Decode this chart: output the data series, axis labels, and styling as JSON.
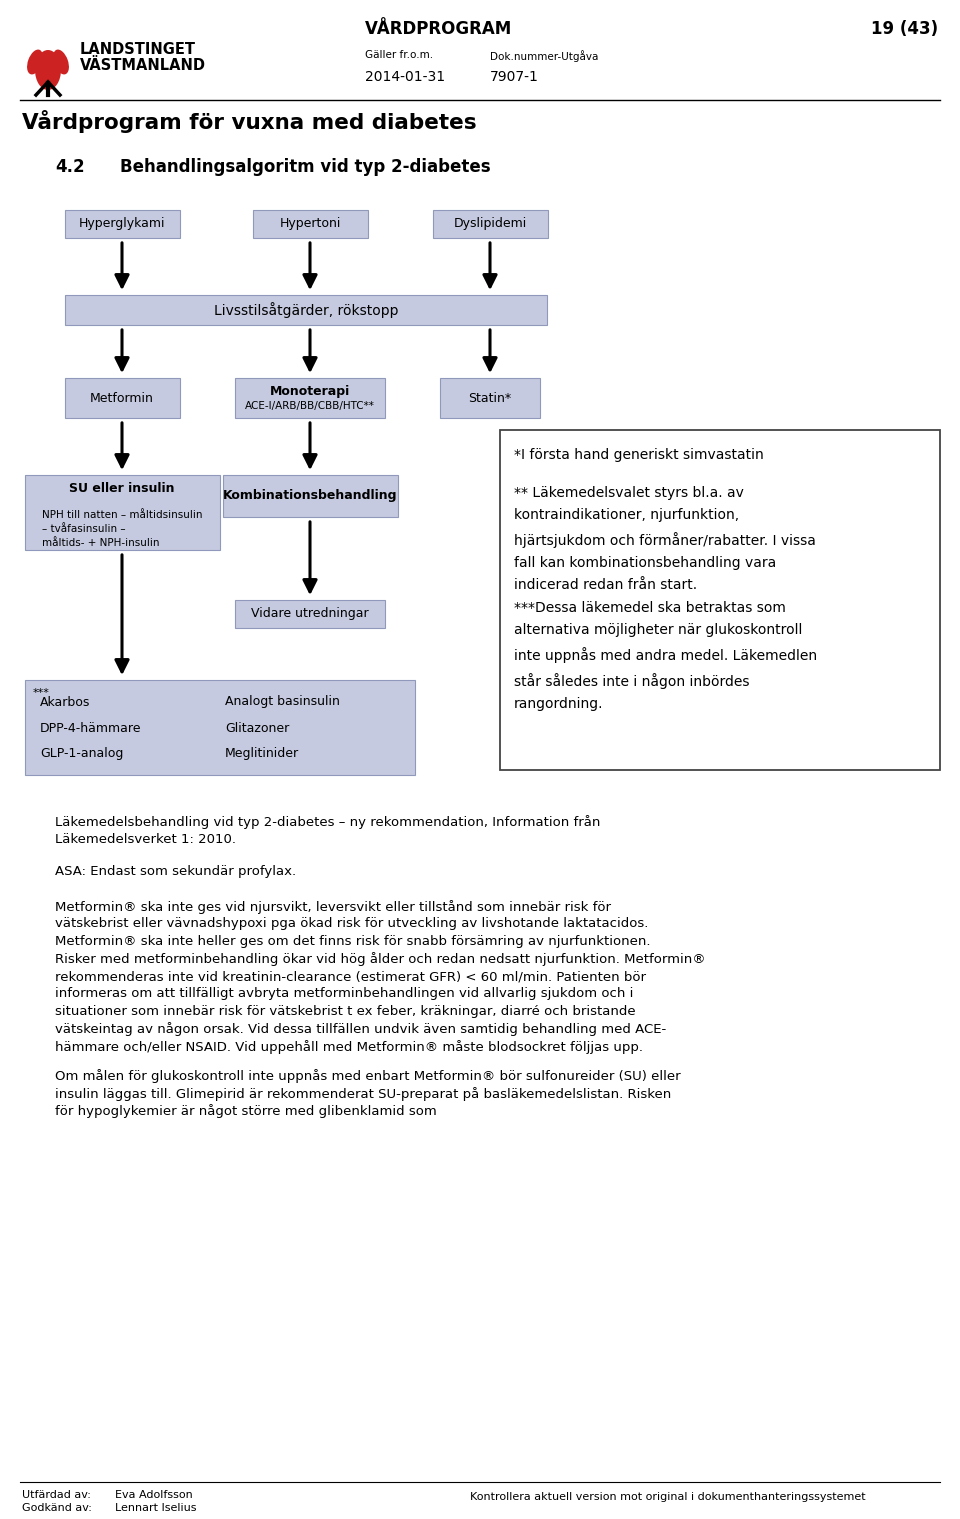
{
  "page_title": "Vårdprogram för vuxna med diabetes",
  "header_left_line1": "LANDSTINGET",
  "header_left_line2": "VÄSTMANLAND",
  "header_center_title": "VÅRDPROGRAM",
  "header_right": "19 (43)",
  "header_label1": "Gäller fr.o.m.",
  "header_label2": "Dok.nummer-Utgåva",
  "header_date": "2014-01-31",
  "header_docnum": "7907-1",
  "section_num": "4.2",
  "section_title": "Behandlingsalgoritm vid typ 2-diabetes",
  "box_bg": "#c5cae0",
  "top_box_labels": [
    "Hyperglykami",
    "Hypertoni",
    "Dyslipidemi"
  ],
  "livsstil_box": "Livsstilsåtgärder, rökstopp",
  "metformin_box": "Metformin",
  "monoterapi_bold": "Monoterapi",
  "monoterapi_sub": "ACE-I/ARB/BB/CBB/HTC**",
  "statin_box": "Statin*",
  "su_bold": "SU eller insulin",
  "su_sub": "NPH till natten – måltidsinsulin\n– tvåfasinsulin –\nmåltids- + NPH-insulin",
  "kombi_bold": "Kombinationsbehandling",
  "vidare_box": "Vidare utredningar",
  "bottom_star": "***",
  "bottom_left": [
    "Akarbos",
    "DPP-4-hämmare",
    "GLP-1-analog"
  ],
  "bottom_right": [
    "Analogt basinsulin",
    "Glitazoner",
    "Meglitinider"
  ],
  "note_line1": "*I första hand generiskt simvastatin",
  "note_line2": "** Läkemedelsvalet styrs bl.a. av\nkontraindikationer, njurfunktion,\nhjärtsjukdom och förmåner/rabatter. I vissa\nfall kan kombinationsbehandling vara\nindicerad redan från start.",
  "note_line3": "***Dessa läkemedel ska betraktas som\nalternativa möjligheter när glukoskontroll\ninte uppnås med andra medel. Läkemedlen\nstår således inte i någon inbördes\nrangordning.",
  "footnote1a": "Läkemedelsbehandling vid typ 2-diabetes – ny rekommendation, Information från",
  "footnote1b": "Läkemedelsverket 1: 2010.",
  "footnote2": "ASA: Endast som sekundär profylax.",
  "body1": "Metformin® ska inte ges vid njursvikt, leversvikt eller tillstånd som innebär risk för vätskebrist eller vävnadshypoxi pga ökad risk för utveckling av livshotande laktatacidos. Metformin® ska inte heller ges om det finns risk för snabb försämring av njurfunktionen. Risker med metforminbehandling ökar vid hög ålder och redan nedsatt njurfunktion. Metformin® rekommenderas inte vid kreatinin-clearance (estimerat GFR) < 60 ml/min. Patienten bör informeras om att tillfälligt avbryta metforminbehandlingen vid allvarlig sjukdom och i situationer som innebär risk för vätskebrist t ex feber, kräkningar, diarré och bristande vätskeintag av någon orsak. Vid dessa tillfällen undvik även samtidig behandling med ACE-hämmare och/eller NSAID. Vid uppehåll med Metformin® måste blodsockret följjas upp.",
  "body2": "Om målen för glukoskontroll inte uppnås med enbart Metformin® bör sulfonureider (SU) eller insulin läggas till. Glimepirid är rekommenderat SU-preparat på basläkemedelslistan. Risken för hypoglykemier är något större med glibenklamid som",
  "footer_utfardad": "Utfärdad av:",
  "footer_godkand": "Godkänd av:",
  "footer_name1": "Eva Adolfsson",
  "footer_name2": "Lennart Iselius",
  "footer_right": "Kontrollera aktuell version mot original i dokumenthanteringssystemet",
  "bg": "#ffffff",
  "logo_red": "#cc2222"
}
